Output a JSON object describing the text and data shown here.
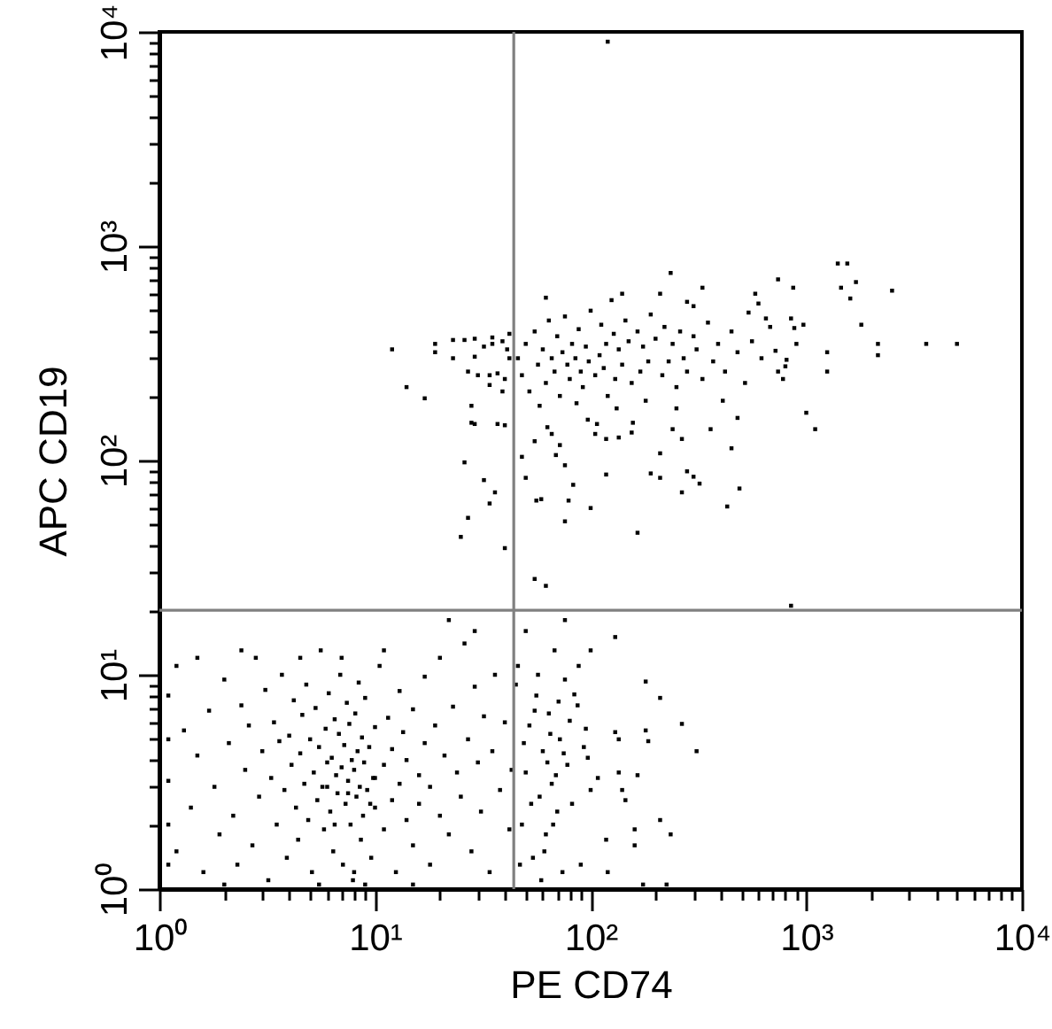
{
  "chart_data": {
    "type": "scatter",
    "xlabel": "PE CD74",
    "ylabel": "APC CD19",
    "log": "xy",
    "marker": "square",
    "xlim": [
      1,
      10000
    ],
    "ylim": [
      1,
      10000
    ],
    "xticks": [
      {
        "value": 1,
        "label": "10⁰"
      },
      {
        "value": 2,
        "label": null
      },
      {
        "value": 3,
        "label": null
      },
      {
        "value": 4,
        "label": null
      },
      {
        "value": 5,
        "label": null
      },
      {
        "value": 6,
        "label": null
      },
      {
        "value": 7,
        "label": null
      },
      {
        "value": 8,
        "label": null
      },
      {
        "value": 9,
        "label": null
      },
      {
        "value": 10,
        "label": "10¹"
      },
      {
        "value": 20,
        "label": null
      },
      {
        "value": 30,
        "label": null
      },
      {
        "value": 40,
        "label": null
      },
      {
        "value": 50,
        "label": null
      },
      {
        "value": 60,
        "label": null
      },
      {
        "value": 70,
        "label": null
      },
      {
        "value": 80,
        "label": null
      },
      {
        "value": 90,
        "label": null
      },
      {
        "value": 100,
        "label": "10²"
      },
      {
        "value": 200,
        "label": null
      },
      {
        "value": 300,
        "label": null
      },
      {
        "value": 400,
        "label": null
      },
      {
        "value": 500,
        "label": null
      },
      {
        "value": 600,
        "label": null
      },
      {
        "value": 700,
        "label": null
      },
      {
        "value": 800,
        "label": null
      },
      {
        "value": 900,
        "label": null
      },
      {
        "value": 1000,
        "label": "10³"
      },
      {
        "value": 2000,
        "label": null
      },
      {
        "value": 3000,
        "label": null
      },
      {
        "value": 4000,
        "label": null
      },
      {
        "value": 5000,
        "label": null
      },
      {
        "value": 6000,
        "label": null
      },
      {
        "value": 7000,
        "label": null
      },
      {
        "value": 8000,
        "label": null
      },
      {
        "value": 9000,
        "label": null
      },
      {
        "value": 10000,
        "label": "10⁴"
      }
    ],
    "yticks": [
      {
        "value": 1,
        "label": "10⁰"
      },
      {
        "value": 2,
        "label": null
      },
      {
        "value": 3,
        "label": null
      },
      {
        "value": 4,
        "label": null
      },
      {
        "value": 5,
        "label": null
      },
      {
        "value": 6,
        "label": null
      },
      {
        "value": 7,
        "label": null
      },
      {
        "value": 8,
        "label": null
      },
      {
        "value": 9,
        "label": null
      },
      {
        "value": 10,
        "label": "10¹"
      },
      {
        "value": 20,
        "label": null
      },
      {
        "value": 30,
        "label": null
      },
      {
        "value": 40,
        "label": null
      },
      {
        "value": 50,
        "label": null
      },
      {
        "value": 60,
        "label": null
      },
      {
        "value": 70,
        "label": null
      },
      {
        "value": 80,
        "label": null
      },
      {
        "value": 90,
        "label": null
      },
      {
        "value": 100,
        "label": "10²"
      },
      {
        "value": 200,
        "label": null
      },
      {
        "value": 300,
        "label": null
      },
      {
        "value": 400,
        "label": null
      },
      {
        "value": 500,
        "label": null
      },
      {
        "value": 600,
        "label": null
      },
      {
        "value": 700,
        "label": null
      },
      {
        "value": 800,
        "label": null
      },
      {
        "value": 900,
        "label": null
      },
      {
        "value": 1000,
        "label": "10³"
      },
      {
        "value": 2000,
        "label": null
      },
      {
        "value": 3000,
        "label": null
      },
      {
        "value": 4000,
        "label": null
      },
      {
        "value": 5000,
        "label": null
      },
      {
        "value": 6000,
        "label": null
      },
      {
        "value": 7000,
        "label": null
      },
      {
        "value": 8000,
        "label": null
      },
      {
        "value": 9000,
        "label": null
      },
      {
        "value": 10000,
        "label": "10⁴"
      }
    ],
    "ref_lines": [
      {
        "axis": "x",
        "value": 44,
        "color": "#808080"
      },
      {
        "axis": "y",
        "value": 20,
        "color": "#808080"
      }
    ],
    "series": [
      {
        "color": "#000000",
        "x": [
          1.1,
          1.2,
          1.3,
          1.1,
          1.4,
          1.5,
          1.2,
          1.6,
          1.7,
          1.8,
          1.9,
          2.0,
          2.1,
          2.2,
          2.3,
          2.4,
          2.5,
          2.6,
          2.7,
          2.8,
          2.9,
          3.0,
          3.1,
          3.2,
          3.3,
          3.4,
          3.5,
          3.6,
          3.7,
          3.8,
          3.9,
          4.0,
          4.1,
          4.2,
          4.3,
          4.4,
          4.5,
          4.6,
          4.7,
          4.8,
          4.9,
          5.0,
          5.1,
          5.2,
          5.3,
          5.4,
          5.5,
          5.6,
          5.7,
          5.8,
          5.9,
          6.0,
          6.1,
          6.2,
          6.3,
          6.4,
          6.5,
          6.6,
          6.7,
          6.8,
          6.9,
          7.0,
          7.1,
          7.2,
          7.3,
          7.4,
          7.5,
          7.6,
          7.7,
          7.8,
          7.9,
          8.0,
          8.1,
          8.2,
          8.3,
          8.4,
          8.5,
          8.6,
          8.7,
          8.8,
          8.9,
          9.0,
          9.2,
          9.4,
          9.6,
          9.8,
          10,
          10,
          10.5,
          11,
          11,
          11.5,
          12,
          12,
          12.5,
          13,
          13,
          13.5,
          14,
          14,
          15,
          15,
          16,
          16,
          17,
          17,
          18,
          18,
          19,
          20,
          20,
          21,
          22,
          23,
          24,
          25,
          26,
          27,
          28,
          29,
          30,
          31,
          32,
          34,
          35,
          36,
          38,
          40,
          42,
          43,
          1.1,
          1.1,
          1.1,
          2.0,
          5.5,
          9.0,
          15,
          22,
          2.4,
          29,
          1.5,
          7,
          11,
          4.5,
          8,
          6.5,
          9.5,
          7.5,
          10,
          6
        ],
        "values": [
          3.2,
          1.5,
          5.5,
          8.0,
          2.4,
          4.2,
          11,
          1.2,
          6.8,
          3.0,
          1.8,
          9.5,
          4.8,
          2.2,
          1.3,
          7.2,
          3.6,
          5.8,
          1.6,
          12,
          2.7,
          4.4,
          8.5,
          1.1,
          3.3,
          6.0,
          2.0,
          4.9,
          10,
          2.9,
          1.4,
          5.2,
          3.8,
          7.6,
          2.4,
          1.7,
          4.3,
          6.5,
          3.1,
          9.0,
          2.1,
          5.0,
          1.2,
          3.5,
          7.0,
          2.6,
          4.6,
          13,
          3.0,
          1.9,
          5.6,
          3.9,
          8.2,
          2.3,
          4.1,
          1.5,
          6.2,
          3.4,
          2.8,
          5.3,
          10,
          3.7,
          1.3,
          4.7,
          2.5,
          7.4,
          3.2,
          5.9,
          2.0,
          4.0,
          1.1,
          3.6,
          6.6,
          2.7,
          4.4,
          9.2,
          3.0,
          1.7,
          5.1,
          2.2,
          3.9,
          7.8,
          2.9,
          4.6,
          1.4,
          3.3,
          5.7,
          2.4,
          11,
          3.8,
          1.9,
          6.3,
          2.6,
          4.5,
          1.2,
          8.4,
          3.1,
          5.4,
          2.1,
          4.0,
          1.6,
          6.9,
          3.4,
          2.5,
          9.8,
          4.8,
          1.3,
          3.0,
          5.8,
          2.2,
          12,
          4.2,
          1.8,
          7.1,
          3.5,
          2.7,
          14,
          5.0,
          1.5,
          8.8,
          3.9,
          2.3,
          6.4,
          1.2,
          4.4,
          10,
          2.9,
          6.0,
          1.9,
          3.6,
          2.0,
          5.0,
          1.3,
          1.05,
          1.05,
          1.05,
          1.05,
          18,
          13,
          16,
          12,
          12,
          13,
          12,
          1.2,
          2.0,
          2.5,
          2.8,
          3.3,
          3.0
        ]
      },
      {
        "color": "#000000",
        "x": [
          48,
          50,
          52,
          54,
          56,
          58,
          60,
          62,
          64,
          66,
          68,
          70,
          72,
          74,
          76,
          78,
          80,
          84,
          87,
          90,
          93,
          95,
          97,
          100,
          100,
          108,
          118,
          120,
          130,
          130,
          135,
          135,
          140,
          145,
          160,
          160,
          165,
          175,
          180,
          180,
          185,
          210,
          210,
          225,
          235,
          265,
          310,
          46,
          50,
          55,
          59,
          63,
          67,
          71,
          75,
          49,
          53,
          57,
          61,
          65,
          76,
          45,
          47,
          69,
          82,
          88
        ],
        "values": [
          2.0,
          3.5,
          5.8,
          1.4,
          8.0,
          2.7,
          4.4,
          1.8,
          6.6,
          3.1,
          13,
          2.3,
          5.0,
          1.2,
          9.5,
          3.8,
          6.1,
          8.1,
          7.2,
          1.3,
          4.6,
          5.6,
          4.1,
          2.9,
          13,
          3.3,
          1.7,
          1.2,
          15,
          5.4,
          3.5,
          5.0,
          2.9,
          2.6,
          1.9,
          1.6,
          3.4,
          1.05,
          9.3,
          5.5,
          4.9,
          7.8,
          2.1,
          1.05,
          1.8,
          5.9,
          4.4,
          11,
          16,
          6.8,
          1.1,
          3.9,
          2.0,
          7.5,
          4.3,
          4.8,
          2.5,
          10,
          1.5,
          5.3,
          18,
          9.0,
          1.3,
          3.4,
          2.5,
          11
        ]
      },
      {
        "color": "#000000",
        "x": [
          12,
          14,
          17,
          26,
          32,
          36,
          34,
          27,
          25,
          40,
          28,
          28,
          40,
          19,
          19,
          23,
          23,
          26,
          29,
          29,
          32,
          35,
          35,
          39,
          42,
          27,
          30,
          34,
          37,
          40,
          42,
          41,
          39,
          37,
          29,
          34
        ],
        "values": [
          330,
          220,
          195,
          98,
          81,
          71,
          63,
          54,
          44,
          39,
          150,
          180,
          146,
          350,
          320,
          365,
          300,
          365,
          370,
          305,
          340,
          375,
          350,
          360,
          390,
          260,
          250,
          250,
          255,
          240,
          300,
          330,
          210,
          148,
          148,
          225
        ]
      },
      {
        "color": "#000000",
        "x": [
          120,
          5000,
          3600,
          2500,
          1400,
          1550,
          1700,
          1450,
          1600,
          1800,
          2150,
          2150,
          1250,
          1250,
          1000,
          1100,
          56,
          79,
          76,
          100,
          430,
          165,
          55,
          62,
          850,
          59,
          118,
          190,
          210,
          280,
          300,
          320,
          490,
          210,
          265,
          450,
          48,
          50,
          69,
          76,
          83,
          72,
          55,
          105,
          118,
          135,
          155,
          240,
          265,
          360,
          480,
          157,
          97,
          107,
          63,
          66,
          235,
          210,
          140,
          125,
          62,
          330,
          740,
          870,
          580,
          600,
          280,
          300,
          850,
          880,
          970,
          720,
          810,
          800,
          780,
          650,
          540,
          46,
          48,
          50,
          52,
          55,
          57,
          60,
          62,
          64,
          66,
          68,
          70,
          72,
          74,
          76,
          78,
          80,
          82,
          85,
          88,
          90,
          92,
          95,
          98,
          100,
          105,
          110,
          112,
          115,
          118,
          120,
          128,
          130,
          135,
          140,
          145,
          150,
          155,
          165,
          170,
          175,
          180,
          185,
          190,
          200,
          215,
          220,
          230,
          240,
          250,
          260,
          270,
          280,
          300,
          310,
          330,
          350,
          370,
          390,
          420,
          450,
          480,
          520,
          560,
          620,
          680,
          740,
          900,
          58,
          86,
          132,
          250,
          410
        ],
        "values": [
          9000,
          350,
          350,
          620,
          830,
          830,
          680,
          640,
          570,
          430,
          350,
          310,
          320,
          260,
          167,
          140,
          65,
          65,
          52,
          60,
          61,
          46,
          28,
          26,
          21,
          66,
          86,
          87,
          83,
          89,
          84,
          78,
          74,
          108,
          71,
          114,
          104,
          83,
          106,
          95,
          77,
          118,
          123,
          133,
          126,
          128,
          135,
          140,
          126,
          140,
          158,
          150,
          155,
          148,
          143,
          133,
          750,
          600,
          600,
          560,
          575,
          640,
          700,
          640,
          600,
          540,
          550,
          525,
          460,
          415,
          430,
          325,
          295,
          275,
          240,
          460,
          490,
          300,
          250,
          350,
          210,
          400,
          280,
          330,
          230,
          450,
          300,
          260,
          380,
          200,
          320,
          470,
          280,
          240,
          350,
          300,
          410,
          260,
          220,
          340,
          290,
          500,
          250,
          310,
          430,
          270,
          350,
          200,
          390,
          240,
          330,
          280,
          450,
          360,
          230,
          400,
          260,
          340,
          190,
          290,
          480,
          370,
          250,
          420,
          290,
          350,
          220,
          400,
          300,
          260,
          380,
          330,
          240,
          440,
          290,
          350,
          260,
          400,
          320,
          230,
          360,
          300,
          420,
          260,
          350,
          180,
          185,
          175,
          175,
          190
        ]
      }
    ]
  }
}
